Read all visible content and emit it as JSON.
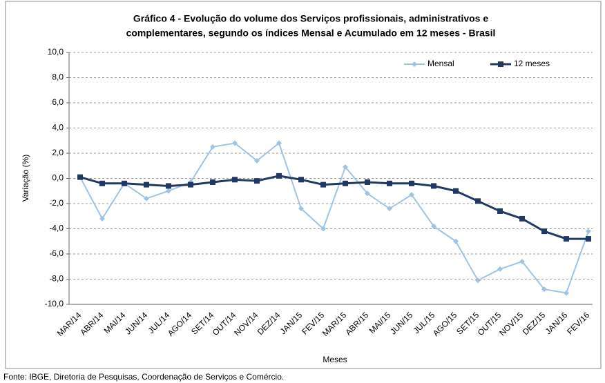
{
  "chart_data": {
    "type": "line",
    "title": [
      "Gráfico 4 - Evolução do volume dos Serviços profissionais, administrativos e",
      "complementares, segundo os índices Mensal e Acumulado em 12 meses - Brasil"
    ],
    "y_label": "Variação (%)",
    "x_label": "Meses",
    "source": "Fonte: IBGE, Diretoria de Pesquisas, Coordenação de Serviços e Comércio.",
    "categories": [
      "MAR/14",
      "ABR/14",
      "MAI/14",
      "JUN/14",
      "JUL/14",
      "AGO/14",
      "SET/14",
      "OUT/14",
      "NOV/14",
      "DEZ/14",
      "JAN/15",
      "FEV/15",
      "MAR/15",
      "ABR/15",
      "MAI/15",
      "JUN/15",
      "JUL/15",
      "AGO/15",
      "SET/15",
      "OUT/15",
      "NOV/15",
      "DEZ/15",
      "JAN/16",
      "FEV/16"
    ],
    "series": [
      {
        "name": "Mensal",
        "color": "#9dc3e6",
        "marker": "diamond",
        "values": [
          0.1,
          -3.2,
          -0.4,
          -1.6,
          -1.0,
          -0.3,
          2.5,
          2.8,
          1.4,
          2.8,
          -2.4,
          -4.0,
          0.9,
          -1.2,
          -2.4,
          -1.3,
          -3.8,
          -5.0,
          -8.1,
          -7.2,
          -6.6,
          -8.8,
          -9.1,
          -4.2
        ]
      },
      {
        "name": "12 meses",
        "color": "#1f3864",
        "marker": "square",
        "values": [
          0.1,
          -0.4,
          -0.4,
          -0.5,
          -0.6,
          -0.5,
          -0.3,
          -0.1,
          -0.2,
          0.2,
          -0.1,
          -0.5,
          -0.4,
          -0.3,
          -0.4,
          -0.4,
          -0.6,
          -1.0,
          -1.8,
          -2.6,
          -3.2,
          -4.2,
          -4.8,
          -4.8
        ]
      }
    ],
    "ylim": [
      -10,
      10
    ],
    "yticks": [
      {
        "value": -10,
        "label": "-10,0"
      },
      {
        "value": -8,
        "label": "-8,0"
      },
      {
        "value": -6,
        "label": "-6,0"
      },
      {
        "value": -4,
        "label": "-4,0"
      },
      {
        "value": -2,
        "label": "-2,0"
      },
      {
        "value": 0,
        "label": "0,0"
      },
      {
        "value": 2,
        "label": "2,0"
      },
      {
        "value": 4,
        "label": "4,0"
      },
      {
        "value": 6,
        "label": "6,0"
      },
      {
        "value": 8,
        "label": "8,0"
      },
      {
        "value": 10,
        "label": "10,0"
      }
    ],
    "grid": true,
    "legend": "top-right"
  }
}
